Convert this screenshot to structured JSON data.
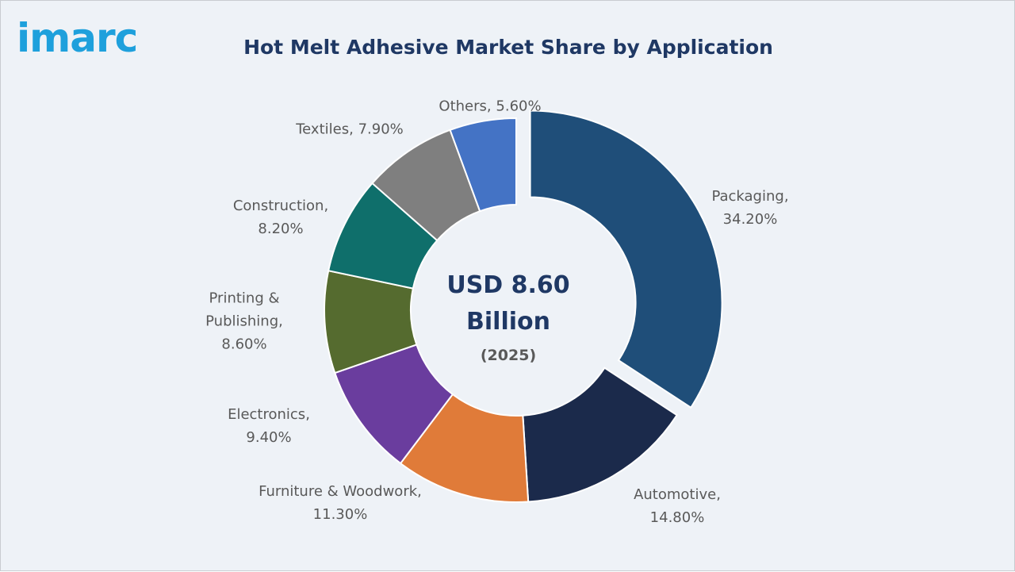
{
  "brand": "imarc",
  "chart_data": {
    "type": "donut",
    "title": "Hot Melt Adhesive Market Share by Application",
    "center_label": "USD 8.60 Billion",
    "center_sublabel": "(2025)",
    "label_separator": ",",
    "categories": [
      "Packaging",
      "Automotive",
      "Furniture & Woodwork",
      "Electronics",
      "Printing & Publishing",
      "Construction",
      "Textiles",
      "Others"
    ],
    "values": [
      34.2,
      14.8,
      11.3,
      9.4,
      8.6,
      8.2,
      7.9,
      5.6
    ],
    "value_labels": [
      "34.20%",
      "14.80%",
      "11.30%",
      "9.40%",
      "8.60%",
      "8.20%",
      "7.90%",
      "5.60%"
    ],
    "colors": [
      "#1f4e79",
      "#1b2a4b",
      "#e07b39",
      "#6a3d9e",
      "#556b2f",
      "#0f6f6b",
      "#7f7f7f",
      "#4473c5"
    ],
    "exploded": [
      "Packaging"
    ]
  }
}
